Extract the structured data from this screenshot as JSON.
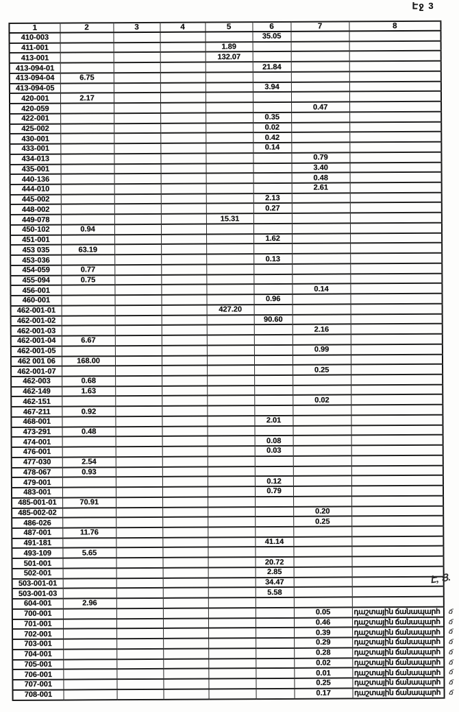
{
  "page_label": "Էջ 3",
  "margin_note": "Է, Ց.",
  "table": {
    "headers": [
      "1",
      "2",
      "3",
      "4",
      "5",
      "6",
      "7",
      "8"
    ],
    "road_label": "դաշտային ճանապարհ",
    "rows": [
      {
        "cells": [
          "410-003",
          "",
          "",
          "",
          "",
          "35.05",
          "",
          ""
        ]
      },
      {
        "cells": [
          "411-001",
          "",
          "",
          "",
          "1.89",
          "",
          "",
          ""
        ]
      },
      {
        "cells": [
          "413-001",
          "",
          "",
          "",
          "132.07",
          "",
          "",
          ""
        ]
      },
      {
        "cells": [
          "413-094-01",
          "",
          "",
          "",
          "",
          "21.84",
          "",
          ""
        ]
      },
      {
        "cells": [
          "413-094-04",
          "6.75",
          "",
          "",
          "",
          "",
          "",
          ""
        ]
      },
      {
        "cells": [
          "413-094-05",
          "",
          "",
          "",
          "",
          "3.94",
          "",
          ""
        ]
      },
      {
        "cells": [
          "420-001",
          "2.17",
          "",
          "",
          "",
          "",
          "",
          ""
        ]
      },
      {
        "cells": [
          "420-059",
          "",
          "",
          "",
          "",
          "",
          "0.47",
          ""
        ]
      },
      {
        "cells": [
          "422-001",
          "",
          "",
          "",
          "",
          "0.35",
          "",
          ""
        ]
      },
      {
        "cells": [
          "425-002",
          "",
          "",
          "",
          "",
          "0.02",
          "",
          ""
        ]
      },
      {
        "cells": [
          "430-001",
          "",
          "",
          "",
          "",
          "0.42",
          "",
          ""
        ]
      },
      {
        "cells": [
          "433-001",
          "",
          "",
          "",
          "",
          "0.14",
          "",
          ""
        ]
      },
      {
        "cells": [
          "434-013",
          "",
          "",
          "",
          "",
          "",
          "0.79",
          ""
        ]
      },
      {
        "cells": [
          "435-001",
          "",
          "",
          "",
          "",
          "",
          "3.40",
          ""
        ]
      },
      {
        "cells": [
          "440-136",
          "",
          "",
          "",
          "",
          "",
          "0.48",
          ""
        ]
      },
      {
        "cells": [
          "444-010",
          "",
          "",
          "",
          "",
          "",
          "2.61",
          ""
        ]
      },
      {
        "cells": [
          "445-002",
          "",
          "",
          "",
          "",
          "2.13",
          "",
          ""
        ]
      },
      {
        "cells": [
          "448-002",
          "",
          "",
          "",
          "",
          "0.27",
          "",
          ""
        ]
      },
      {
        "cells": [
          "449-078",
          "",
          "",
          "",
          "15.31",
          "",
          "",
          ""
        ]
      },
      {
        "cells": [
          "450-102",
          "0.94",
          "",
          "",
          "",
          "",
          "",
          ""
        ]
      },
      {
        "cells": [
          "451-001",
          "",
          "",
          "",
          "",
          "1.62",
          "",
          ""
        ]
      },
      {
        "cells": [
          "453 035",
          "63.19",
          "",
          "",
          "",
          "",
          "",
          ""
        ]
      },
      {
        "cells": [
          "453-036",
          "",
          "",
          "",
          "",
          "0.13",
          "",
          ""
        ]
      },
      {
        "cells": [
          "454-059",
          "0.77",
          "",
          "",
          "",
          "",
          "",
          ""
        ]
      },
      {
        "cells": [
          "455-094",
          "0.75",
          "",
          "",
          "",
          "",
          "",
          ""
        ]
      },
      {
        "cells": [
          "456-001",
          "",
          "",
          "",
          "",
          "",
          "0.14",
          ""
        ]
      },
      {
        "cells": [
          "460-001",
          "",
          "",
          "",
          "",
          "0.96",
          "",
          ""
        ]
      },
      {
        "cells": [
          "462-001-01",
          "",
          "",
          "",
          "427.20",
          "",
          "",
          ""
        ]
      },
      {
        "cells": [
          "462-001-02",
          "",
          "",
          "",
          "",
          "90.60",
          "",
          ""
        ]
      },
      {
        "cells": [
          "462-001-03",
          "",
          "",
          "",
          "",
          "",
          "2.16",
          ""
        ]
      },
      {
        "cells": [
          "462-001-04",
          "6.67",
          "",
          "",
          "",
          "",
          "",
          ""
        ]
      },
      {
        "cells": [
          "462-001-05",
          "",
          "",
          "",
          "",
          "",
          "0.99",
          ""
        ]
      },
      {
        "cells": [
          "462 001 06",
          "168.00",
          "",
          "",
          "",
          "",
          "",
          ""
        ]
      },
      {
        "cells": [
          "462-001-07",
          "",
          "",
          "",
          "",
          "",
          "0.25",
          ""
        ]
      },
      {
        "cells": [
          "462-003",
          "0.68",
          "",
          "",
          "",
          "",
          "",
          ""
        ]
      },
      {
        "cells": [
          "462-149",
          "1.63",
          "",
          "",
          "",
          "",
          "",
          ""
        ]
      },
      {
        "cells": [
          "462-151",
          "",
          "",
          "",
          "",
          "",
          "0.02",
          ""
        ]
      },
      {
        "cells": [
          "467-211",
          "0.92",
          "",
          "",
          "",
          "",
          "",
          ""
        ]
      },
      {
        "cells": [
          "468-001",
          "",
          "",
          "",
          "",
          "2.01",
          "",
          ""
        ]
      },
      {
        "cells": [
          "473-291",
          "0.48",
          "",
          "",
          "",
          "",
          "",
          ""
        ]
      },
      {
        "cells": [
          "474-001",
          "",
          "",
          "",
          "",
          "0.08",
          "",
          ""
        ]
      },
      {
        "cells": [
          "476-001",
          "",
          "",
          "",
          "",
          "0.03",
          "",
          ""
        ]
      },
      {
        "cells": [
          "477-030",
          "2.54",
          "",
          "",
          "",
          "",
          "",
          ""
        ]
      },
      {
        "cells": [
          "478-067",
          "0.93",
          "",
          "",
          "",
          "",
          "",
          ""
        ]
      },
      {
        "cells": [
          "479-001",
          "",
          "",
          "",
          "",
          "0.12",
          "",
          ""
        ]
      },
      {
        "cells": [
          "483-001",
          "",
          "",
          "",
          "",
          "0.79",
          "",
          ""
        ]
      },
      {
        "cells": [
          "485-001-01",
          "70.91",
          "",
          "",
          "",
          "",
          "",
          ""
        ]
      },
      {
        "cells": [
          "485-002-02",
          "",
          "",
          "",
          "",
          "",
          "0.20",
          ""
        ]
      },
      {
        "cells": [
          "486-026",
          "",
          "",
          "",
          "",
          "",
          "0.25",
          ""
        ]
      },
      {
        "cells": [
          "487-001",
          "11.76",
          "",
          "",
          "",
          "",
          "",
          ""
        ]
      },
      {
        "cells": [
          "491-181",
          "",
          "",
          "",
          "",
          "41.14",
          "",
          ""
        ]
      },
      {
        "cells": [
          "493-109",
          "5.65",
          "",
          "",
          "",
          "",
          "",
          ""
        ]
      },
      {
        "cells": [
          "501-001",
          "",
          "",
          "",
          "",
          "20.72",
          "",
          ""
        ]
      },
      {
        "cells": [
          "502-001",
          "",
          "",
          "",
          "",
          "2.85",
          "",
          ""
        ]
      },
      {
        "cells": [
          "503-001-01",
          "",
          "",
          "",
          "",
          "34.47",
          "",
          ""
        ]
      },
      {
        "cells": [
          "503-001-03",
          "",
          "",
          "",
          "",
          "5.58",
          "",
          ""
        ]
      },
      {
        "cells": [
          "604-001",
          "2.96",
          "",
          "",
          "",
          "",
          "",
          ""
        ]
      },
      {
        "cells": [
          "700-001",
          "",
          "",
          "",
          "",
          "",
          "0.05",
          "դաշտային ճանապարհ"
        ],
        "mark": "ճ"
      },
      {
        "cells": [
          "701-001",
          "",
          "",
          "",
          "",
          "",
          "0.46",
          "դաշտային ճանապարհ"
        ],
        "mark": "ճ"
      },
      {
        "cells": [
          "702-001",
          "",
          "",
          "",
          "",
          "",
          "0.39",
          "դաշտային ճանապարհ"
        ],
        "mark": "ճ"
      },
      {
        "cells": [
          "703-001",
          "",
          "",
          "",
          "",
          "",
          "0.29",
          "դաշտային ճանապարհ"
        ],
        "mark": "ճ"
      },
      {
        "cells": [
          "704-001",
          "",
          "",
          "",
          "",
          "",
          "0.28",
          "դաշտային ճանապարհ"
        ],
        "mark": "ճ"
      },
      {
        "cells": [
          "705-001",
          "",
          "",
          "",
          "",
          "",
          "0.02",
          "դաշտային ճանապարհ"
        ],
        "mark": "ճ"
      },
      {
        "cells": [
          "706-001",
          "",
          "",
          "",
          "",
          "",
          "0.01",
          "դաշտային ճանապարհ"
        ],
        "mark": "ճ"
      },
      {
        "cells": [
          "707-001",
          "",
          "",
          "",
          "",
          "",
          "0.25",
          "դաշտային ճանապարհ"
        ],
        "mark": "ճ"
      },
      {
        "cells": [
          "708-001",
          "",
          "",
          "",
          "",
          "",
          "0.17",
          "դաշտային ճանապարհ"
        ],
        "mark": "ճ"
      }
    ]
  }
}
